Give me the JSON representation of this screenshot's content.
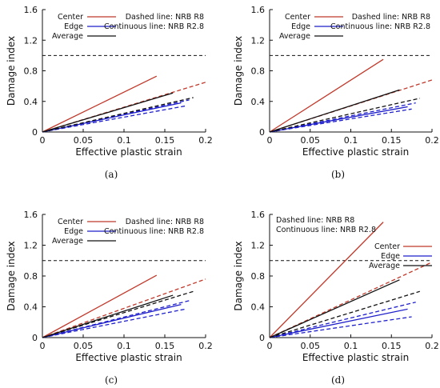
{
  "chart_data": [
    {
      "type": "line",
      "caption": "(a)",
      "xlabel": "Effective plastic strain",
      "ylabel": "Damage index",
      "xlim": [
        0,
        0.2
      ],
      "ylim": [
        0,
        1.6
      ],
      "xticks": [
        "0",
        "0.05",
        "0.1",
        "0.15",
        "0.2"
      ],
      "yticks": [
        "0",
        "0.4",
        "0.8",
        "1.2",
        "1.6"
      ],
      "threshold": 1.0,
      "legend_position": "top-left",
      "notes": [
        "Dashed line: NRB R8",
        "Continuous line: NRB R2.8"
      ],
      "series": [
        {
          "name": "Center",
          "color": "#c0392b",
          "solid": [
            [
              0,
              0
            ],
            [
              0.14,
              0.73
            ]
          ],
          "dashed": [
            [
              0,
              0
            ],
            [
              0.2,
              0.65
            ]
          ]
        },
        {
          "name": "Edge",
          "color": "#1f1fcc",
          "solid": [
            [
              0,
              0
            ],
            [
              0.17,
              0.38
            ]
          ],
          "dashed_upper": [
            [
              0,
              0
            ],
            [
              0.18,
              0.42
            ]
          ],
          "dashed_lower": [
            [
              0,
              0
            ],
            [
              0.175,
              0.34
            ]
          ]
        },
        {
          "name": "Average",
          "color": "#111111",
          "solid": [
            [
              0,
              0
            ],
            [
              0.16,
              0.51
            ]
          ],
          "dashed": [
            [
              0,
              0
            ],
            [
              0.185,
              0.45
            ]
          ]
        }
      ]
    },
    {
      "type": "line",
      "caption": "(b)",
      "xlabel": "Effective plastic strain",
      "ylabel": "Damage index",
      "xlim": [
        0,
        0.2
      ],
      "ylim": [
        0,
        1.6
      ],
      "xticks": [
        "0",
        "0.05",
        "0.1",
        "0.15",
        "0.2"
      ],
      "yticks": [
        "0",
        "0.4",
        "0.8",
        "1.2",
        "1.6"
      ],
      "threshold": 1.0,
      "legend_position": "top-left",
      "notes": [
        "Dashed line: NRB R8",
        "Continuous line: NRB R2.8"
      ],
      "series": [
        {
          "name": "Center",
          "color": "#c0392b",
          "solid": [
            [
              0,
              0
            ],
            [
              0.14,
              0.95
            ]
          ],
          "dashed": [
            [
              0,
              0
            ],
            [
              0.2,
              0.68
            ]
          ]
        },
        {
          "name": "Edge",
          "color": "#1f1fcc",
          "solid": [
            [
              0,
              0
            ],
            [
              0.17,
              0.33
            ]
          ],
          "dashed_upper": [
            [
              0,
              0
            ],
            [
              0.18,
              0.38
            ]
          ],
          "dashed_lower": [
            [
              0,
              0
            ],
            [
              0.175,
              0.3
            ]
          ]
        },
        {
          "name": "Average",
          "color": "#111111",
          "solid": [
            [
              0,
              0
            ],
            [
              0.16,
              0.55
            ]
          ],
          "dashed": [
            [
              0,
              0
            ],
            [
              0.185,
              0.44
            ]
          ]
        }
      ]
    },
    {
      "type": "line",
      "caption": "(c)",
      "xlabel": "Effective plastic strain",
      "ylabel": "Damage index",
      "xlim": [
        0,
        0.2
      ],
      "ylim": [
        0,
        1.6
      ],
      "xticks": [
        "0",
        "0.05",
        "0.1",
        "0.15",
        "0.2"
      ],
      "yticks": [
        "0",
        "0.4",
        "0.8",
        "1.2",
        "1.6"
      ],
      "threshold": 1.0,
      "legend_position": "top-left",
      "notes": [
        "Dashed line: NRB R8",
        "Continuous line: NRB R2.8"
      ],
      "series": [
        {
          "name": "Center",
          "color": "#c0392b",
          "solid": [
            [
              0,
              0
            ],
            [
              0.14,
              0.81
            ]
          ],
          "dashed": [
            [
              0,
              0
            ],
            [
              0.2,
              0.76
            ]
          ]
        },
        {
          "name": "Edge",
          "color": "#1f1fcc",
          "solid": [
            [
              0,
              0
            ],
            [
              0.17,
              0.43
            ]
          ],
          "dashed_upper": [
            [
              0,
              0
            ],
            [
              0.18,
              0.48
            ]
          ],
          "dashed_lower": [
            [
              0,
              0
            ],
            [
              0.175,
              0.37
            ]
          ]
        },
        {
          "name": "Average",
          "color": "#111111",
          "solid": [
            [
              0,
              0
            ],
            [
              0.16,
              0.55
            ]
          ],
          "dashed": [
            [
              0,
              0
            ],
            [
              0.185,
              0.6
            ]
          ]
        }
      ]
    },
    {
      "type": "line",
      "caption": "(d)",
      "xlabel": "Effective plastic strain",
      "ylabel": "Damage index",
      "xlim": [
        0,
        0.2
      ],
      "ylim": [
        0,
        1.6
      ],
      "xticks": [
        "0",
        "0.05",
        "0.1",
        "0.15",
        "0.2"
      ],
      "yticks": [
        "0",
        "0.4",
        "0.8",
        "1.2",
        "1.6"
      ],
      "threshold": 1.0,
      "legend_position": "right",
      "notes": [
        "Dashed line: NRB R8",
        "Continuous line: NRB R2.8"
      ],
      "series": [
        {
          "name": "Center",
          "color": "#c0392b",
          "solid": [
            [
              0,
              0
            ],
            [
              0.14,
              1.5
            ]
          ],
          "dashed": [
            [
              0,
              0
            ],
            [
              0.2,
              0.98
            ]
          ]
        },
        {
          "name": "Edge",
          "color": "#1f1fcc",
          "solid": [
            [
              0,
              0
            ],
            [
              0.17,
              0.37
            ]
          ],
          "dashed_upper": [
            [
              0,
              0
            ],
            [
              0.18,
              0.46
            ]
          ],
          "dashed_lower": [
            [
              0,
              0
            ],
            [
              0.175,
              0.27
            ]
          ]
        },
        {
          "name": "Average",
          "color": "#111111",
          "solid": [
            [
              0,
              0
            ],
            [
              0.16,
              0.75
            ]
          ],
          "dashed": [
            [
              0,
              0
            ],
            [
              0.185,
              0.6
            ]
          ]
        }
      ]
    }
  ]
}
